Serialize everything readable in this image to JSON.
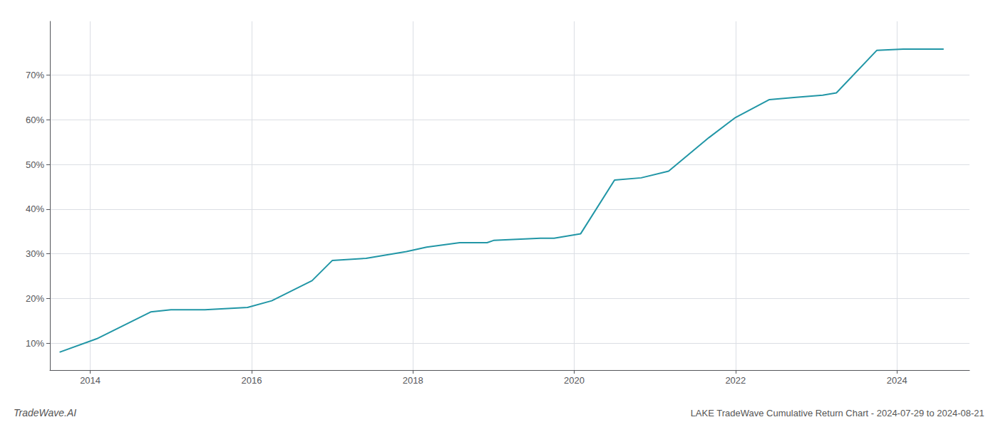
{
  "chart_data": {
    "type": "line",
    "title": "LAKE TradeWave Cumulative Return Chart - 2024-07-29 to 2024-08-21",
    "annotations": [
      "TradeWave.AI"
    ],
    "x": [
      2013.62,
      2014.08,
      2014.75,
      2015.0,
      2015.42,
      2015.95,
      2016.25,
      2016.75,
      2017.0,
      2017.42,
      2017.92,
      2018.17,
      2018.58,
      2018.92,
      2019.0,
      2019.58,
      2019.75,
      2020.08,
      2020.5,
      2020.83,
      2021.17,
      2021.67,
      2022.0,
      2022.42,
      2022.75,
      2023.08,
      2023.25,
      2023.75,
      2024.08,
      2024.58
    ],
    "values": [
      8.0,
      11.0,
      17.0,
      17.5,
      17.5,
      18.0,
      19.5,
      24.0,
      28.5,
      29.0,
      30.5,
      31.5,
      32.5,
      32.5,
      33.0,
      33.5,
      33.5,
      34.5,
      46.5,
      47.0,
      48.5,
      56.0,
      60.5,
      64.5,
      65.0,
      65.5,
      66.0,
      75.5,
      75.8,
      75.8
    ],
    "color": "#2196a6",
    "xlim": [
      2013.5,
      2024.9
    ],
    "ylim": [
      4,
      82
    ],
    "xticks": [
      2014,
      2016,
      2018,
      2020,
      2022,
      2024
    ],
    "yticks": [
      {
        "value": 10,
        "label": "10%"
      },
      {
        "value": 20,
        "label": "20%"
      },
      {
        "value": 30,
        "label": "30%"
      },
      {
        "value": 40,
        "label": "40%"
      },
      {
        "value": 50,
        "label": "50%"
      },
      {
        "value": 60,
        "label": "60%"
      },
      {
        "value": 70,
        "label": "70%"
      }
    ],
    "grid": true
  }
}
